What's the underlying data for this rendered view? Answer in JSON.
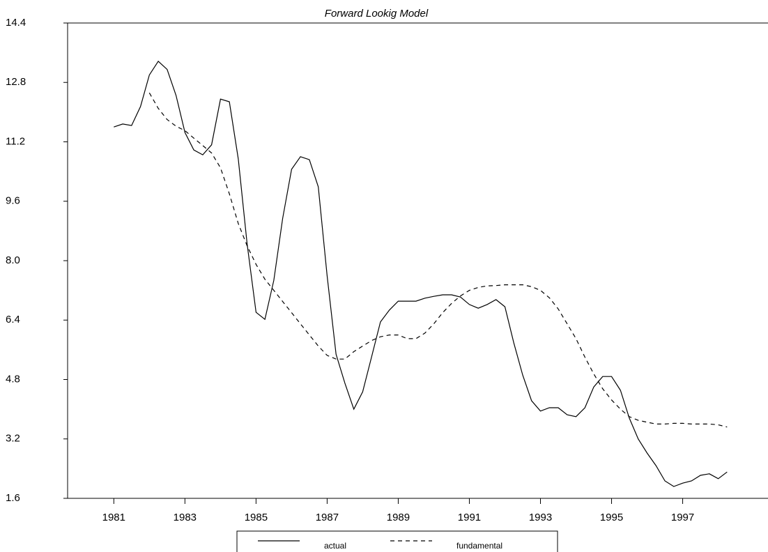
{
  "chart_data": {
    "type": "line",
    "title": "Forward Lookig Model",
    "x": [
      1981.0,
      1981.25,
      1981.5,
      1981.75,
      1982.0,
      1982.25,
      1982.5,
      1982.75,
      1983.0,
      1983.25,
      1983.5,
      1983.75,
      1984.0,
      1984.25,
      1984.5,
      1984.75,
      1985.0,
      1985.25,
      1985.5,
      1985.75,
      1986.0,
      1986.25,
      1986.5,
      1986.75,
      1987.0,
      1987.25,
      1987.5,
      1987.75,
      1988.0,
      1988.25,
      1988.5,
      1988.75,
      1989.0,
      1989.25,
      1989.5,
      1989.75,
      1990.0,
      1990.25,
      1990.5,
      1990.75,
      1991.0,
      1991.25,
      1991.5,
      1991.75,
      1992.0,
      1992.25,
      1992.5,
      1992.75,
      1993.0,
      1993.25,
      1993.5,
      1993.75,
      1994.0,
      1994.25,
      1994.5,
      1994.75,
      1995.0,
      1995.25,
      1995.5,
      1995.75,
      1996.0,
      1996.25,
      1996.5,
      1996.75,
      1997.0,
      1997.25,
      1997.5,
      1997.75,
      1998.0,
      1998.25
    ],
    "series": [
      {
        "name": "actual",
        "color": "#000000",
        "dash": false,
        "values": [
          11.6,
          11.68,
          11.64,
          12.15,
          13.0,
          13.37,
          13.15,
          12.45,
          11.45,
          10.98,
          10.85,
          11.12,
          12.35,
          12.28,
          10.74,
          8.45,
          6.61,
          6.42,
          7.47,
          9.14,
          10.46,
          10.8,
          10.72,
          9.99,
          7.59,
          5.48,
          4.7,
          4.0,
          4.47,
          5.41,
          6.35,
          6.67,
          6.91,
          6.91,
          6.91,
          6.99,
          7.04,
          7.08,
          7.08,
          7.02,
          6.82,
          6.72,
          6.82,
          6.95,
          6.76,
          5.79,
          4.92,
          4.23,
          3.95,
          4.04,
          4.04,
          3.85,
          3.8,
          4.04,
          4.6,
          4.88,
          4.88,
          4.51,
          3.76,
          3.2,
          2.82,
          2.48,
          2.07,
          1.92,
          2.01,
          2.07,
          2.22,
          2.26,
          2.13,
          2.31
        ]
      },
      {
        "name": "fundamental",
        "color": "#000000",
        "dash": true,
        "values": [
          null,
          null,
          null,
          null,
          12.52,
          12.1,
          11.8,
          11.62,
          11.5,
          11.3,
          11.1,
          10.9,
          10.5,
          9.8,
          9.0,
          8.4,
          7.9,
          7.5,
          7.2,
          6.9,
          6.6,
          6.3,
          6.0,
          5.7,
          5.45,
          5.35,
          5.35,
          5.55,
          5.7,
          5.85,
          5.95,
          6.0,
          6.0,
          5.9,
          5.9,
          6.05,
          6.3,
          6.6,
          6.85,
          7.05,
          7.2,
          7.28,
          7.32,
          7.33,
          7.35,
          7.35,
          7.35,
          7.3,
          7.2,
          7.0,
          6.7,
          6.3,
          5.9,
          5.4,
          4.95,
          4.55,
          4.25,
          4.0,
          3.8,
          3.7,
          3.65,
          3.6,
          3.6,
          3.62,
          3.62,
          3.6,
          3.6,
          3.6,
          3.58,
          3.52
        ]
      }
    ],
    "xlim": [
      1979.7,
      1999.4
    ],
    "xticks": [
      1981,
      1983,
      1985,
      1987,
      1989,
      1991,
      1993,
      1995,
      1997
    ],
    "ylim": [
      1.6,
      14.4
    ],
    "yticks": [
      1.6,
      3.2,
      4.8,
      6.4,
      {
        "value": 8,
        "label": "8.0"
      },
      9.6,
      11.2,
      12.8,
      14.4
    ],
    "legend": "bottom"
  }
}
